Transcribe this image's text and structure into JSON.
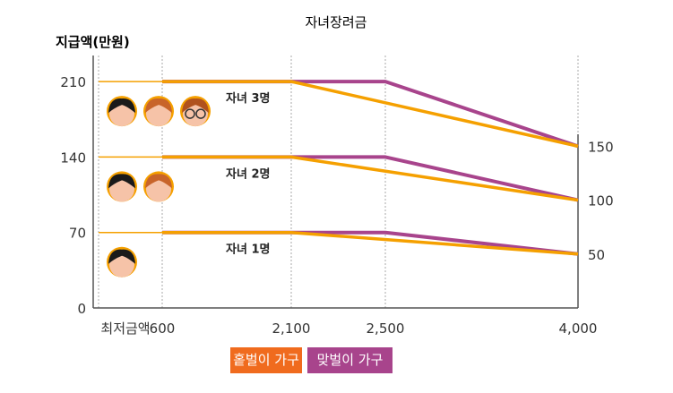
{
  "chart_data": {
    "type": "line",
    "title": "자녀장려금",
    "ylabel": "지급액(만원)",
    "xlabel": "",
    "x_ticks": [
      "최저금액",
      "600",
      "2,100",
      "2,500",
      "4,000"
    ],
    "y_ticks": [
      0,
      70,
      140,
      210
    ],
    "right_ticks": [
      150,
      100,
      50
    ],
    "ylim": [
      0,
      230
    ],
    "grid": "vertical dotted lines at x ticks",
    "legend_placement": "bottom",
    "colors": {
      "single": "#f5a000",
      "dual": "#a8448c",
      "legend_single": "#f06b1e",
      "legend_dual": "#a8448c"
    },
    "groups": [
      {
        "label": "자녀 3명",
        "children": 3,
        "single": [
          [
            "최저금액",
            210
          ],
          [
            "600",
            210
          ],
          [
            "2,100",
            210
          ],
          [
            "4,000",
            150
          ]
        ],
        "dual": [
          [
            "600",
            210
          ],
          [
            "2,500",
            210
          ],
          [
            "4,000",
            150
          ]
        ]
      },
      {
        "label": "자녀 2명",
        "children": 2,
        "single": [
          [
            "최저금액",
            140
          ],
          [
            "600",
            140
          ],
          [
            "2,100",
            140
          ],
          [
            "4,000",
            100
          ]
        ],
        "dual": [
          [
            "600",
            140
          ],
          [
            "2,500",
            140
          ],
          [
            "4,000",
            100
          ]
        ]
      },
      {
        "label": "자녀 1명",
        "children": 1,
        "single": [
          [
            "최저금액",
            70
          ],
          [
            "600",
            70
          ],
          [
            "2,100",
            70
          ],
          [
            "4,000",
            50
          ]
        ],
        "dual": [
          [
            "600",
            70
          ],
          [
            "2,500",
            70
          ],
          [
            "4,000",
            50
          ]
        ]
      }
    ],
    "legend": [
      {
        "name": "홑벌이 가구"
      },
      {
        "name": "맞벌이 가구"
      }
    ]
  }
}
